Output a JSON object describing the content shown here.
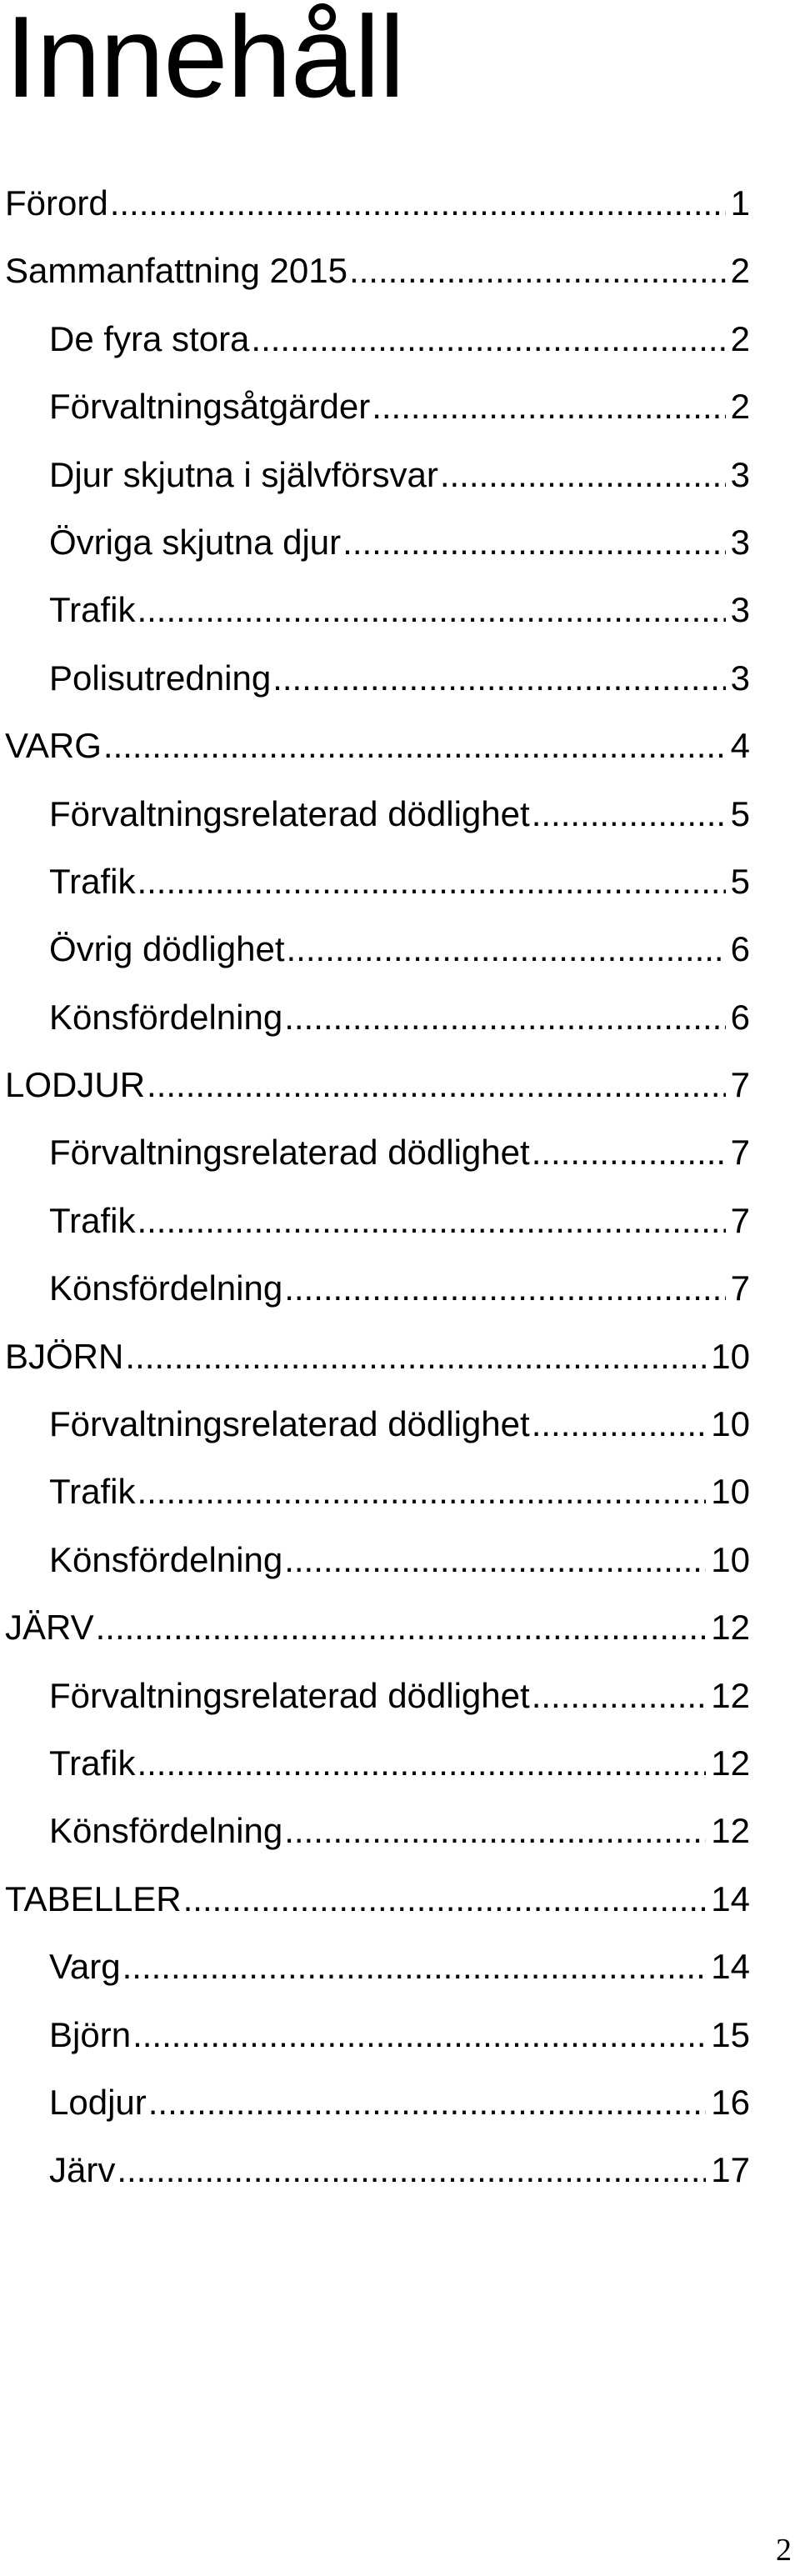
{
  "heading": "Innehåll",
  "toc": [
    {
      "title": "Förord",
      "page": "1",
      "level": 1
    },
    {
      "title": "Sammanfattning 2015",
      "page": "2",
      "level": 1
    },
    {
      "title": "De fyra stora",
      "page": "2",
      "level": 2
    },
    {
      "title": "Förvaltningsåtgärder",
      "page": "2",
      "level": 2
    },
    {
      "title": "Djur skjutna i självförsvar",
      "page": "3",
      "level": 2
    },
    {
      "title": "Övriga skjutna djur",
      "page": "3",
      "level": 2
    },
    {
      "title": "Trafik",
      "page": "3",
      "level": 2
    },
    {
      "title": "Polisutredning",
      "page": "3",
      "level": 2
    },
    {
      "title": "VARG",
      "page": "4",
      "level": 1
    },
    {
      "title": "Förvaltningsrelaterad dödlighet",
      "page": "5",
      "level": 2
    },
    {
      "title": "Trafik",
      "page": "5",
      "level": 2
    },
    {
      "title": "Övrig dödlighet",
      "page": "6",
      "level": 2
    },
    {
      "title": "Könsfördelning",
      "page": "6",
      "level": 2
    },
    {
      "title": "LODJUR",
      "page": "7",
      "level": 1
    },
    {
      "title": "Förvaltningsrelaterad dödlighet",
      "page": "7",
      "level": 2
    },
    {
      "title": "Trafik",
      "page": "7",
      "level": 2
    },
    {
      "title": "Könsfördelning",
      "page": "7",
      "level": 2
    },
    {
      "title": "BJÖRN",
      "page": "10",
      "level": 1
    },
    {
      "title": "Förvaltningsrelaterad dödlighet",
      "page": "10",
      "level": 2
    },
    {
      "title": "Trafik",
      "page": "10",
      "level": 2
    },
    {
      "title": "Könsfördelning",
      "page": "10",
      "level": 2
    },
    {
      "title": "JÄRV",
      "page": "12",
      "level": 1
    },
    {
      "title": "Förvaltningsrelaterad dödlighet",
      "page": "12",
      "level": 2
    },
    {
      "title": "Trafik",
      "page": "12",
      "level": 2
    },
    {
      "title": "Könsfördelning",
      "page": "12",
      "level": 2
    },
    {
      "title": "TABELLER",
      "page": "14",
      "level": 1
    },
    {
      "title": "Varg",
      "page": "14",
      "level": 2
    },
    {
      "title": "Björn",
      "page": "15",
      "level": 2
    },
    {
      "title": "Lodjur",
      "page": "16",
      "level": 2
    },
    {
      "title": "Järv",
      "page": "17",
      "level": 2
    }
  ],
  "page_number": "2"
}
